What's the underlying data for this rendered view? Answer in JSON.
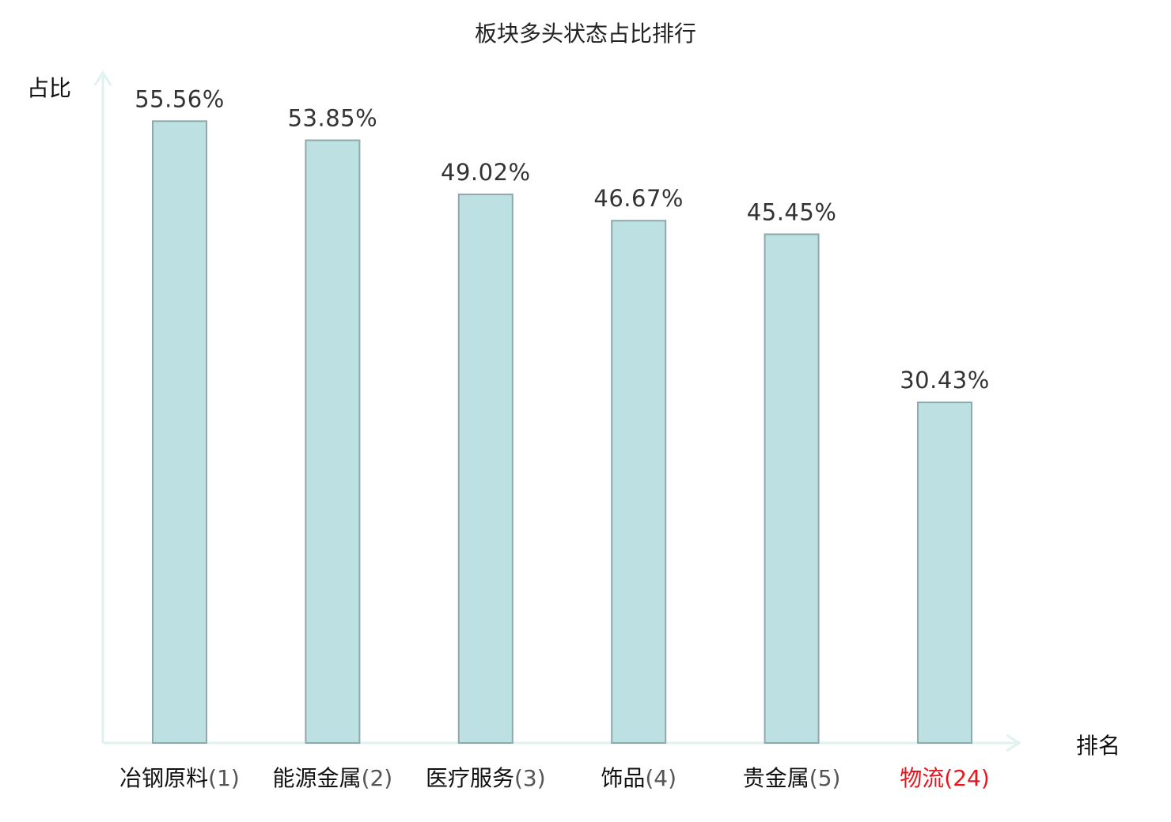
{
  "chart_data": {
    "type": "bar",
    "title": "板块多头状态占比排行",
    "ylabel": "占比",
    "xlabel": "排名",
    "ylim": [
      0,
      60
    ],
    "unit": "%",
    "categories": [
      {
        "name": "冶钢原料",
        "rank": "(1)"
      },
      {
        "name": "能源金属",
        "rank": "(2)"
      },
      {
        "name": "医疗服务",
        "rank": "(3)"
      },
      {
        "name": "饰品",
        "rank": "(4)"
      },
      {
        "name": "贵金属",
        "rank": "(5)"
      },
      {
        "name": "物流",
        "rank": "(24)"
      }
    ],
    "values": [
      55.56,
      53.85,
      49.02,
      46.67,
      45.45,
      30.43
    ],
    "value_labels": [
      "55.56%",
      "53.85%",
      "49.02%",
      "46.67%",
      "45.45%",
      "30.43%"
    ],
    "highlight_index": 5,
    "colors": {
      "bar_fill": "#bde1e3",
      "bar_stroke": "#8fa9ab",
      "axis": "#dff2ef",
      "highlight": "#e6161e"
    }
  }
}
